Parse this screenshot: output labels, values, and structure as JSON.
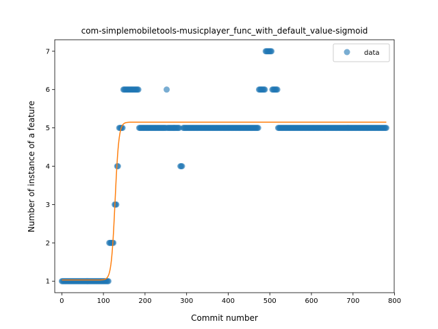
{
  "chart_data": {
    "type": "scatter",
    "title": "com-simplemobiletools-musicplayer_func_with_default_value-sigmoid",
    "xlabel": "Commit number",
    "ylabel": "Number of instance of a feature",
    "xlim": [
      -17,
      799
    ],
    "ylim": [
      0.7,
      7.3
    ],
    "xticks": [
      0,
      100,
      200,
      300,
      400,
      500,
      600,
      700,
      800
    ],
    "yticks": [
      1,
      2,
      3,
      4,
      5,
      6,
      7
    ],
    "grid": false,
    "legend": {
      "placement": "top-right",
      "entries": [
        "data"
      ]
    },
    "colors": {
      "data": "#1f77b4",
      "fit": "#ff7f0e"
    },
    "series": [
      {
        "name": "data",
        "kind": "scatter",
        "segments": [
          {
            "x_start": 0,
            "x_end": 112,
            "y": 1
          },
          {
            "x_start": 114,
            "x_end": 125,
            "y": 2
          },
          {
            "x_start": 127,
            "x_end": 131,
            "y": 3
          },
          {
            "x_start": 133,
            "x_end": 136,
            "y": 4
          },
          {
            "x_start": 138,
            "x_end": 146,
            "y": 5
          },
          {
            "x_start": 148,
            "x_end": 184,
            "y": 6
          },
          {
            "x_start": 186,
            "x_end": 250,
            "y": 5
          },
          {
            "x_start": 252,
            "x_end": 252,
            "y": 6
          },
          {
            "x_start": 254,
            "x_end": 283,
            "y": 5
          },
          {
            "x_start": 285,
            "x_end": 290,
            "y": 4
          },
          {
            "x_start": 292,
            "x_end": 472,
            "y": 5
          },
          {
            "x_start": 474,
            "x_end": 488,
            "y": 6
          },
          {
            "x_start": 490,
            "x_end": 504,
            "y": 7
          },
          {
            "x_start": 506,
            "x_end": 518,
            "y": 6
          },
          {
            "x_start": 520,
            "x_end": 780,
            "y": 5
          }
        ]
      },
      {
        "name": "",
        "kind": "line",
        "sigmoid": {
          "L": 4.12,
          "k": 0.22,
          "x0": 128,
          "b": 1.03
        },
        "x_range": [
          0,
          780
        ]
      }
    ]
  }
}
